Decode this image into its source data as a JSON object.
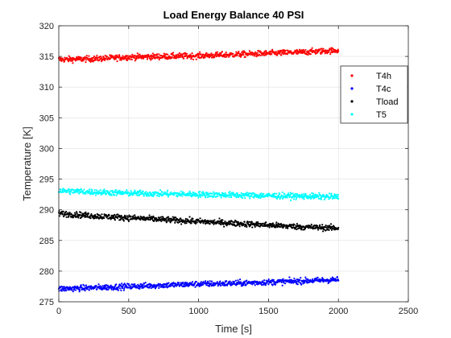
{
  "chart_data": {
    "type": "scatter",
    "title": "Load Energy Balance 40 PSI",
    "xlabel": "Time [s]",
    "ylabel": "Temperature [K]",
    "xlim": [
      0,
      2500
    ],
    "ylim": [
      275,
      320
    ],
    "xticks": [
      "0",
      "500",
      "1000",
      "1500",
      "2000",
      "2500"
    ],
    "yticks": [
      "275",
      "280",
      "285",
      "290",
      "295",
      "300",
      "305",
      "310",
      "315",
      "320"
    ],
    "grid": true,
    "legend_position": "right",
    "series": [
      {
        "name": "T4h",
        "color": "#ff0000",
        "x": [
          0,
          250,
          500,
          750,
          1000,
          1250,
          1500,
          1750,
          2000
        ],
        "values": [
          314.5,
          314.6,
          314.9,
          315.0,
          315.1,
          315.3,
          315.5,
          315.7,
          316.0
        ]
      },
      {
        "name": "T4c",
        "color": "#0000ff",
        "x": [
          0,
          250,
          500,
          750,
          1000,
          1250,
          1500,
          1750,
          2000
        ],
        "values": [
          277.1,
          277.3,
          277.5,
          277.7,
          277.9,
          278.0,
          278.2,
          278.4,
          278.6
        ]
      },
      {
        "name": "Tload",
        "color": "#000000",
        "x": [
          0,
          250,
          500,
          750,
          1000,
          1250,
          1500,
          1750,
          2000
        ],
        "values": [
          289.4,
          289.0,
          288.7,
          288.4,
          288.1,
          287.8,
          287.5,
          287.2,
          287.0
        ]
      },
      {
        "name": "T5",
        "color": "#00ffff",
        "x": [
          0,
          250,
          500,
          750,
          1000,
          1250,
          1500,
          1750,
          2000
        ],
        "values": [
          293.1,
          292.9,
          292.7,
          292.6,
          292.5,
          292.4,
          292.3,
          292.2,
          292.1
        ]
      }
    ]
  }
}
